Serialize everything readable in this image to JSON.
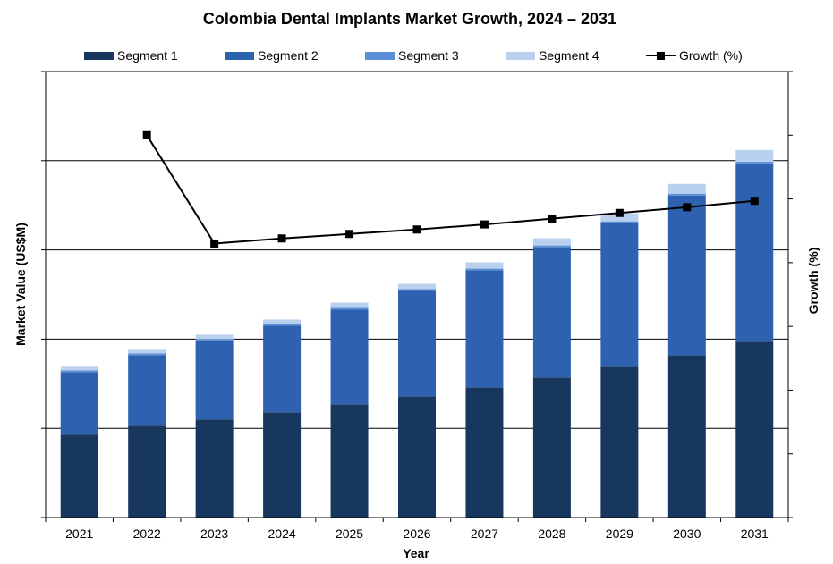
{
  "chart_data": {
    "type": "bar",
    "stacked": true,
    "title": "Colombia Dental Implants Market Growth, 2024 – 2031",
    "xlabel": "Year",
    "ylabel": "Market Value (US$M)",
    "y2label": "Growth (%)",
    "y_tick_labels_shown": false,
    "y2_tick_labels_shown": false,
    "grid": "horizontal",
    "legend_position": "top",
    "ylim": [
      0,
      5
    ],
    "y2lim": [
      0,
      7
    ],
    "categories": [
      "2021",
      "2022",
      "2023",
      "2024",
      "2025",
      "2026",
      "2027",
      "2028",
      "2029",
      "2030",
      "2031"
    ],
    "series": [
      {
        "name": "Segment 1",
        "color": "#17375e",
        "values": [
          0.93,
          1.03,
          1.1,
          1.18,
          1.27,
          1.36,
          1.46,
          1.57,
          1.69,
          1.82,
          1.97
        ]
      },
      {
        "name": "Segment 2",
        "color": "#2e62b0",
        "values": [
          0.7,
          0.79,
          0.88,
          0.97,
          1.06,
          1.18,
          1.31,
          1.46,
          1.61,
          1.79,
          2.0
        ]
      },
      {
        "name": "Segment 3",
        "color": "#5b8fd6",
        "values": [
          0.02,
          0.02,
          0.02,
          0.02,
          0.02,
          0.02,
          0.02,
          0.02,
          0.02,
          0.02,
          0.02
        ]
      },
      {
        "name": "Segment 4",
        "color": "#b9d1ee",
        "values": [
          0.04,
          0.04,
          0.05,
          0.05,
          0.06,
          0.06,
          0.07,
          0.08,
          0.09,
          0.11,
          0.13
        ]
      }
    ],
    "line_series": {
      "name": "Growth (%)",
      "axis": "secondary",
      "color": "#000000",
      "values": [
        null,
        6.0,
        4.3,
        4.38,
        4.45,
        4.52,
        4.6,
        4.69,
        4.78,
        4.87,
        4.97
      ]
    }
  }
}
